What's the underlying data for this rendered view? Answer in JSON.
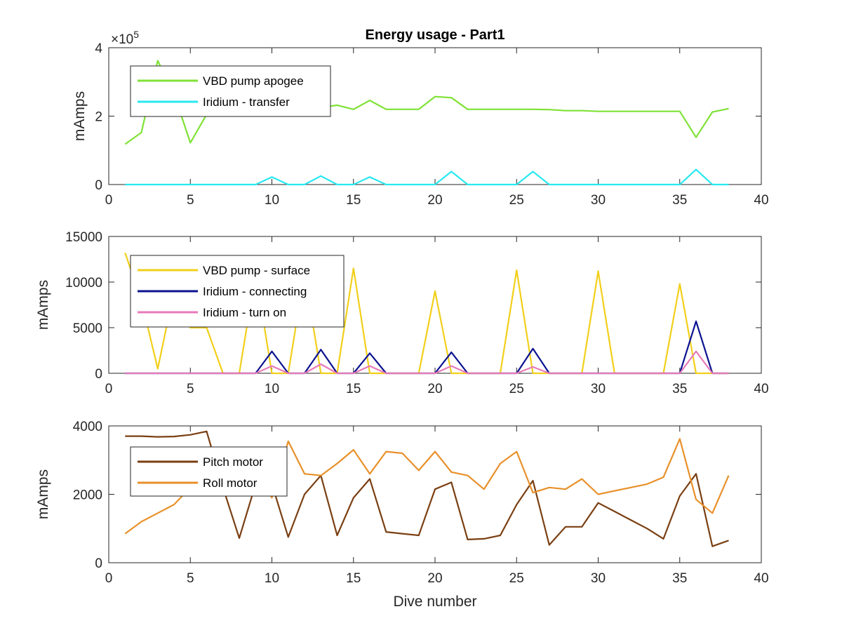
{
  "figure": {
    "title": "Energy usage - Part1"
  },
  "chart_data": [
    {
      "type": "line",
      "title": "Energy usage - Part1",
      "xlabel": "",
      "ylabel": "mAmps",
      "xlim": [
        0,
        40
      ],
      "ylim": [
        0,
        400000
      ],
      "xticks": [
        0,
        5,
        10,
        15,
        20,
        25,
        30,
        35,
        40
      ],
      "yticks": [
        0,
        200000,
        400000
      ],
      "ytick_labels": [
        "0",
        "2",
        "4"
      ],
      "y_exponent_label": "×10",
      "y_exponent_power": "5",
      "grid": false,
      "legend_position": "top-left",
      "series": [
        {
          "name": "VBD pump apogee",
          "color": "#7fe236",
          "x": [
            1,
            2,
            3,
            4,
            5,
            6,
            7,
            8,
            9,
            10,
            11,
            12,
            13,
            14,
            15,
            16,
            17,
            18,
            19,
            20,
            21,
            22,
            23,
            24,
            25,
            26,
            27,
            28,
            29,
            30,
            31,
            32,
            33,
            34,
            35,
            36,
            37,
            38
          ],
          "y": [
            118000,
            152000,
            362000,
            265000,
            122000,
            205000,
            205000,
            225000,
            225000,
            235000,
            225000,
            225000,
            225000,
            232000,
            220000,
            246000,
            220000,
            220000,
            220000,
            257000,
            254000,
            220000,
            220000,
            220000,
            220000,
            220000,
            219000,
            216000,
            216000,
            214000,
            214000,
            214000,
            214000,
            214000,
            214000,
            138000,
            212000,
            222000
          ]
        },
        {
          "name": "Iridium - transfer",
          "color": "#28e8f0",
          "x": [
            1,
            2,
            3,
            4,
            5,
            6,
            7,
            8,
            9,
            10,
            11,
            12,
            13,
            14,
            15,
            16,
            17,
            18,
            19,
            20,
            21,
            22,
            23,
            24,
            25,
            26,
            27,
            28,
            29,
            30,
            31,
            32,
            33,
            34,
            35,
            36,
            37,
            38
          ],
          "y": [
            0,
            0,
            0,
            0,
            0,
            0,
            0,
            0,
            0,
            22000,
            0,
            0,
            25000,
            0,
            0,
            22000,
            0,
            0,
            0,
            0,
            38000,
            0,
            0,
            0,
            0,
            38000,
            0,
            0,
            0,
            0,
            0,
            0,
            0,
            0,
            0,
            44000,
            0,
            0
          ]
        }
      ]
    },
    {
      "type": "line",
      "title": "",
      "xlabel": "",
      "ylabel": "mAmps",
      "xlim": [
        0,
        40
      ],
      "ylim": [
        0,
        15000
      ],
      "xticks": [
        0,
        5,
        10,
        15,
        20,
        25,
        30,
        35,
        40
      ],
      "yticks": [
        0,
        5000,
        10000,
        15000
      ],
      "ytick_labels": [
        "0",
        "5000",
        "10000",
        "15000"
      ],
      "grid": false,
      "legend_position": "top-left",
      "series": [
        {
          "name": "VBD pump - surface",
          "color": "#f2cf1b",
          "x": [
            1,
            2,
            3,
            4,
            5,
            6,
            7,
            8,
            9,
            10,
            11,
            12,
            13,
            14,
            15,
            16,
            17,
            18,
            19,
            20,
            21,
            22,
            23,
            24,
            25,
            26,
            27,
            28,
            29,
            30,
            31,
            32,
            33,
            34,
            35,
            36,
            37,
            38
          ],
          "y": [
            13200,
            8000,
            500,
            9000,
            5000,
            5000,
            0,
            0,
            11000,
            0,
            0,
            11000,
            0,
            0,
            11500,
            0,
            0,
            0,
            0,
            9000,
            0,
            0,
            0,
            0,
            11300,
            0,
            0,
            0,
            0,
            11200,
            0,
            0,
            0,
            0,
            9800,
            0,
            0,
            0
          ]
        },
        {
          "name": "Iridium - connecting",
          "color": "#0b138f",
          "x": [
            1,
            2,
            3,
            4,
            5,
            6,
            7,
            8,
            9,
            10,
            11,
            12,
            13,
            14,
            15,
            16,
            17,
            18,
            19,
            20,
            21,
            22,
            23,
            24,
            25,
            26,
            27,
            28,
            29,
            30,
            31,
            32,
            33,
            34,
            35,
            36,
            37,
            38
          ],
          "y": [
            0,
            0,
            0,
            0,
            0,
            0,
            0,
            0,
            0,
            2400,
            0,
            0,
            2600,
            0,
            0,
            2200,
            0,
            0,
            0,
            0,
            2300,
            0,
            0,
            0,
            0,
            2700,
            0,
            0,
            0,
            0,
            0,
            0,
            0,
            0,
            0,
            5700,
            0,
            0
          ]
        },
        {
          "name": "Iridium - turn on",
          "color": "#e67ab9",
          "x": [
            1,
            2,
            3,
            4,
            5,
            6,
            7,
            8,
            9,
            10,
            11,
            12,
            13,
            14,
            15,
            16,
            17,
            18,
            19,
            20,
            21,
            22,
            23,
            24,
            25,
            26,
            27,
            28,
            29,
            30,
            31,
            32,
            33,
            34,
            35,
            36,
            37,
            38
          ],
          "y": [
            0,
            0,
            0,
            0,
            0,
            0,
            0,
            0,
            0,
            800,
            0,
            0,
            1000,
            0,
            0,
            800,
            0,
            0,
            0,
            0,
            800,
            0,
            0,
            0,
            0,
            700,
            0,
            0,
            0,
            0,
            0,
            0,
            0,
            0,
            0,
            2400,
            0,
            0
          ]
        }
      ]
    },
    {
      "type": "line",
      "title": "",
      "xlabel": "Dive number",
      "ylabel": "mAmps",
      "xlim": [
        0,
        40
      ],
      "ylim": [
        0,
        4000
      ],
      "xticks": [
        0,
        5,
        10,
        15,
        20,
        25,
        30,
        35,
        40
      ],
      "yticks": [
        0,
        2000,
        4000
      ],
      "ytick_labels": [
        "0",
        "2000",
        "4000"
      ],
      "grid": false,
      "legend_position": "top-left",
      "series": [
        {
          "name": "Pitch motor",
          "color": "#7a3f12",
          "x": [
            1,
            2,
            3,
            4,
            5,
            6,
            7,
            8,
            9,
            10,
            11,
            12,
            13,
            14,
            15,
            16,
            17,
            18,
            19,
            20,
            21,
            22,
            23,
            24,
            25,
            26,
            27,
            28,
            29,
            30,
            31,
            32,
            33,
            34,
            35,
            36,
            37,
            38
          ],
          "y": [
            3700,
            3700,
            3680,
            3690,
            3740,
            3840,
            2200,
            720,
            2300,
            2300,
            750,
            2000,
            2550,
            800,
            1900,
            2450,
            900,
            850,
            800,
            2150,
            2350,
            680,
            700,
            800,
            1700,
            2400,
            520,
            1050,
            1050,
            1750,
            1500,
            1250,
            1000,
            700,
            1950,
            2600,
            480,
            650
          ]
        },
        {
          "name": "Roll motor",
          "color": "#e8902a",
          "x": [
            1,
            2,
            3,
            4,
            5,
            6,
            7,
            8,
            9,
            10,
            11,
            12,
            13,
            14,
            15,
            16,
            17,
            18,
            19,
            20,
            21,
            22,
            23,
            24,
            25,
            26,
            27,
            28,
            29,
            30,
            31,
            32,
            33,
            34,
            35,
            36,
            37,
            38
          ],
          "y": [
            850,
            1200,
            1450,
            1700,
            2200,
            2600,
            2700,
            2700,
            2700,
            1900,
            3550,
            2600,
            2550,
            2900,
            3300,
            2600,
            3250,
            3200,
            2700,
            3250,
            2650,
            2550,
            2150,
            2900,
            3250,
            2050,
            2200,
            2150,
            2450,
            2000,
            2100,
            2200,
            2300,
            2500,
            3620,
            1850,
            1450,
            2550
          ]
        }
      ]
    }
  ]
}
